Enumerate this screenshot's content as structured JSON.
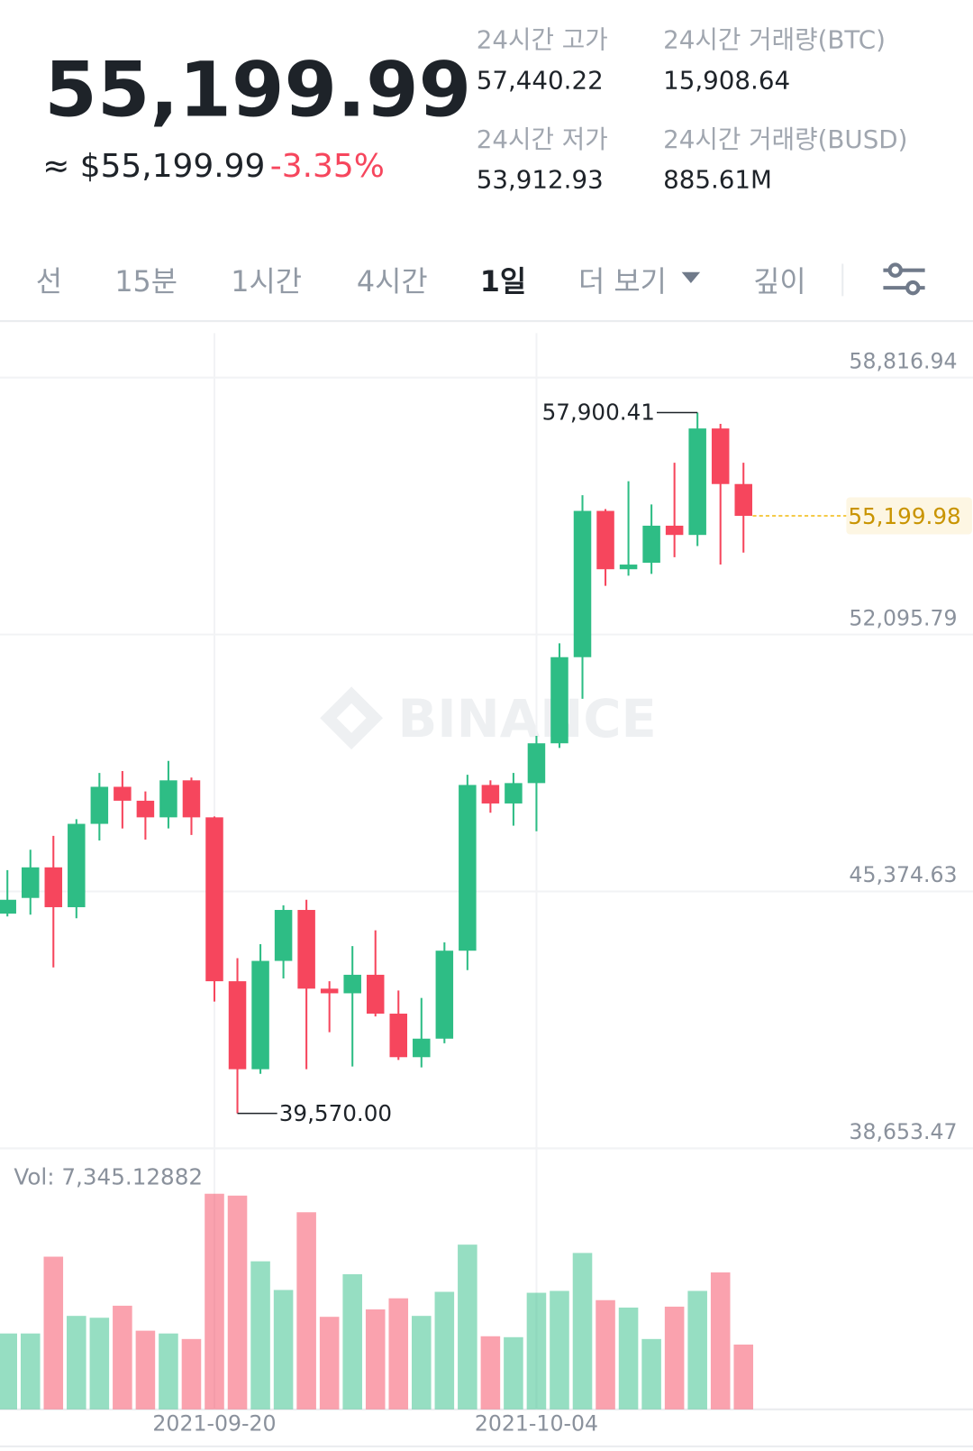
{
  "header": {
    "price": "55,199.99",
    "fiat": "≈ $55,199.99",
    "change": "-3.35%",
    "stats": [
      {
        "label": "24시간 고가",
        "value": "57,440.22"
      },
      {
        "label": "24시간 거래량(BTC)",
        "value": "15,908.64"
      },
      {
        "label": "24시간 저가",
        "value": "53,912.93"
      },
      {
        "label": "24시간 거래량(BUSD)",
        "value": "885.61M"
      }
    ]
  },
  "tabs": [
    "선",
    "15분",
    "1시간",
    "4시간",
    "1일",
    "더 보기",
    "깊이"
  ],
  "selected_tab": 4,
  "chart_data": {
    "type": "candlestick",
    "watermark": "BINANCE",
    "up_color": "#2ebd85",
    "down_color": "#f6465d",
    "categories": [
      null,
      null,
      null,
      null,
      null,
      null,
      null,
      null,
      null,
      "2021-09-20",
      null,
      null,
      null,
      null,
      null,
      null,
      null,
      null,
      null,
      null,
      null,
      null,
      null,
      "2021-10-04",
      null,
      null,
      null,
      null,
      null,
      null,
      null,
      null,
      null
    ],
    "open": [
      44794,
      45205,
      46005,
      44963,
      47143,
      48112,
      47748,
      47313,
      48281,
      47313,
      43026,
      40725,
      43558,
      44891,
      42832,
      42711,
      43195,
      42178,
      41040,
      41524,
      43825,
      48160,
      47676,
      48209,
      49250,
      51503,
      55329,
      53803,
      53973,
      54942,
      54700,
      57485,
      56032
    ],
    "high": [
      45932,
      46465,
      46828,
      47264,
      48475,
      48524,
      47991,
      48790,
      48354,
      47337,
      43631,
      43994,
      45012,
      45157,
      43026,
      43946,
      44358,
      42783,
      42590,
      44043,
      48427,
      48281,
      48475,
      49444,
      51866,
      55741,
      55378,
      56104,
      55499,
      56589,
      57900.41,
      57606,
      56589
    ],
    "low": [
      44721,
      44769,
      43389,
      44673,
      46707,
      47022,
      46731,
      47022,
      46852,
      42493,
      39570,
      40604,
      43098,
      40725,
      41693,
      40797,
      42105,
      40967,
      40773,
      41403,
      43316,
      47434,
      47095,
      46949,
      49129,
      50413,
      53368,
      53634,
      53682,
      54118,
      54409,
      53925,
      54239
    ],
    "close": [
      45157,
      46005,
      44963,
      47143,
      48112,
      47748,
      47313,
      48281,
      47313,
      43026,
      40725,
      43558,
      44891,
      42832,
      42711,
      43195,
      42178,
      41040,
      41524,
      43825,
      48160,
      47676,
      48209,
      49250,
      51503,
      55329,
      53803,
      53925,
      54942,
      54700,
      57485,
      56032,
      55199.98
    ],
    "volume": [
      8604,
      8604,
      17313,
      10598,
      10388,
      11752,
      8919,
      8604,
      7975,
      24449,
      24239,
      16789,
      13536,
      22350,
      10493,
      15320,
      11332,
      12592,
      10598,
      13326,
      18678,
      8289,
      8185,
      13221,
      13431,
      17733,
      12382,
      11542,
      7975,
      11647,
      13431,
      15530,
      7345.12882
    ],
    "volume_label": "Vol: 7,345.12882",
    "ylim": [
      38653.47,
      58816.94
    ],
    "yticks": [
      {
        "value": 58816.94,
        "label": "58,816.94"
      },
      {
        "value": 52095.79,
        "label": "52,095.79"
      },
      {
        "value": 45374.63,
        "label": "45,374.63"
      },
      {
        "value": 38653.47,
        "label": "38,653.47"
      }
    ],
    "grid": true,
    "annotations": [
      {
        "value": 57900.41,
        "label": "57,900.41"
      },
      {
        "value": 39570,
        "label": "39,570.00"
      }
    ],
    "last_price": {
      "value": 55199.98,
      "label": "55,199.98"
    }
  }
}
